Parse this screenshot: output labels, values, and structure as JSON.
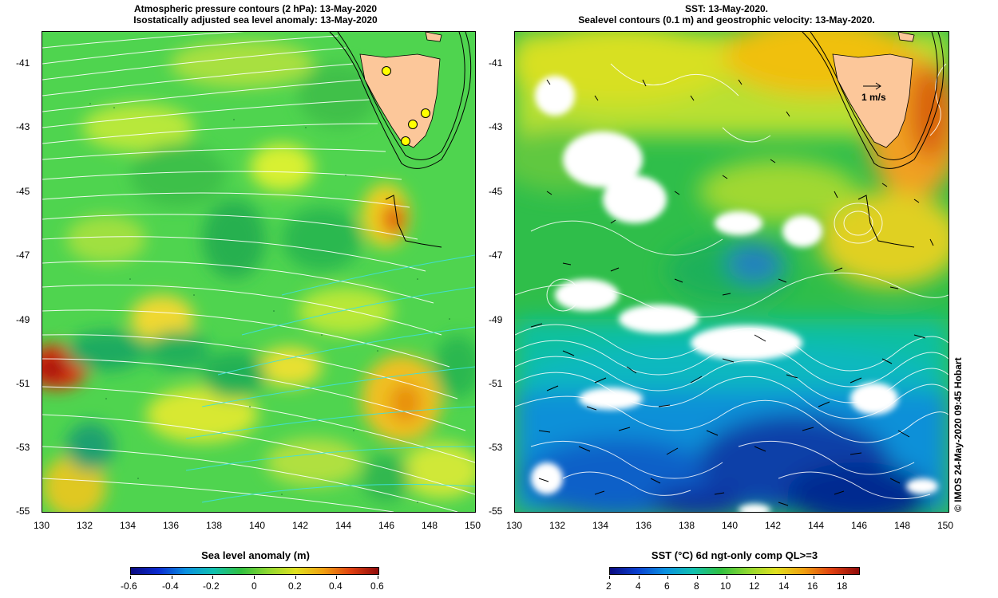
{
  "left_panel": {
    "title_line1": "Atmospheric pressure contours (2 hPa): 13-May-2020",
    "title_line2": "Isostatically adjusted sea level anomaly: 13-May-2020",
    "colorbar_label": "Sea level anomaly (m)",
    "colorbar_ticks": [
      "-0.6",
      "-0.4",
      "-0.2",
      "0",
      "0.2",
      "0.4",
      "0.6"
    ]
  },
  "right_panel": {
    "title_line1": "SST: 13-May-2020.",
    "title_line2": "Sealevel contours (0.1 m) and geostrophic velocity: 13-May-2020.",
    "colorbar_label": "SST (°C) 6d ngt-only comp QL>=3",
    "colorbar_ticks": [
      "2",
      "4",
      "6",
      "8",
      "10",
      "12",
      "14",
      "16",
      "18"
    ],
    "velocity_scale_label": "1 m/s"
  },
  "axes": {
    "lat_ticks": [
      "-41",
      "-43",
      "-45",
      "-47",
      "-49",
      "-51",
      "-53",
      "-55"
    ],
    "lon_ticks": [
      "130",
      "132",
      "134",
      "136",
      "138",
      "140",
      "142",
      "144",
      "146",
      "148",
      "150"
    ]
  },
  "credit": "© IMOS 24-May-2020 09:45 Hobart",
  "colors": {
    "land": "#fcc79a",
    "sla_background": "#4fd44f",
    "sst_background": "#2fbe4a"
  }
}
